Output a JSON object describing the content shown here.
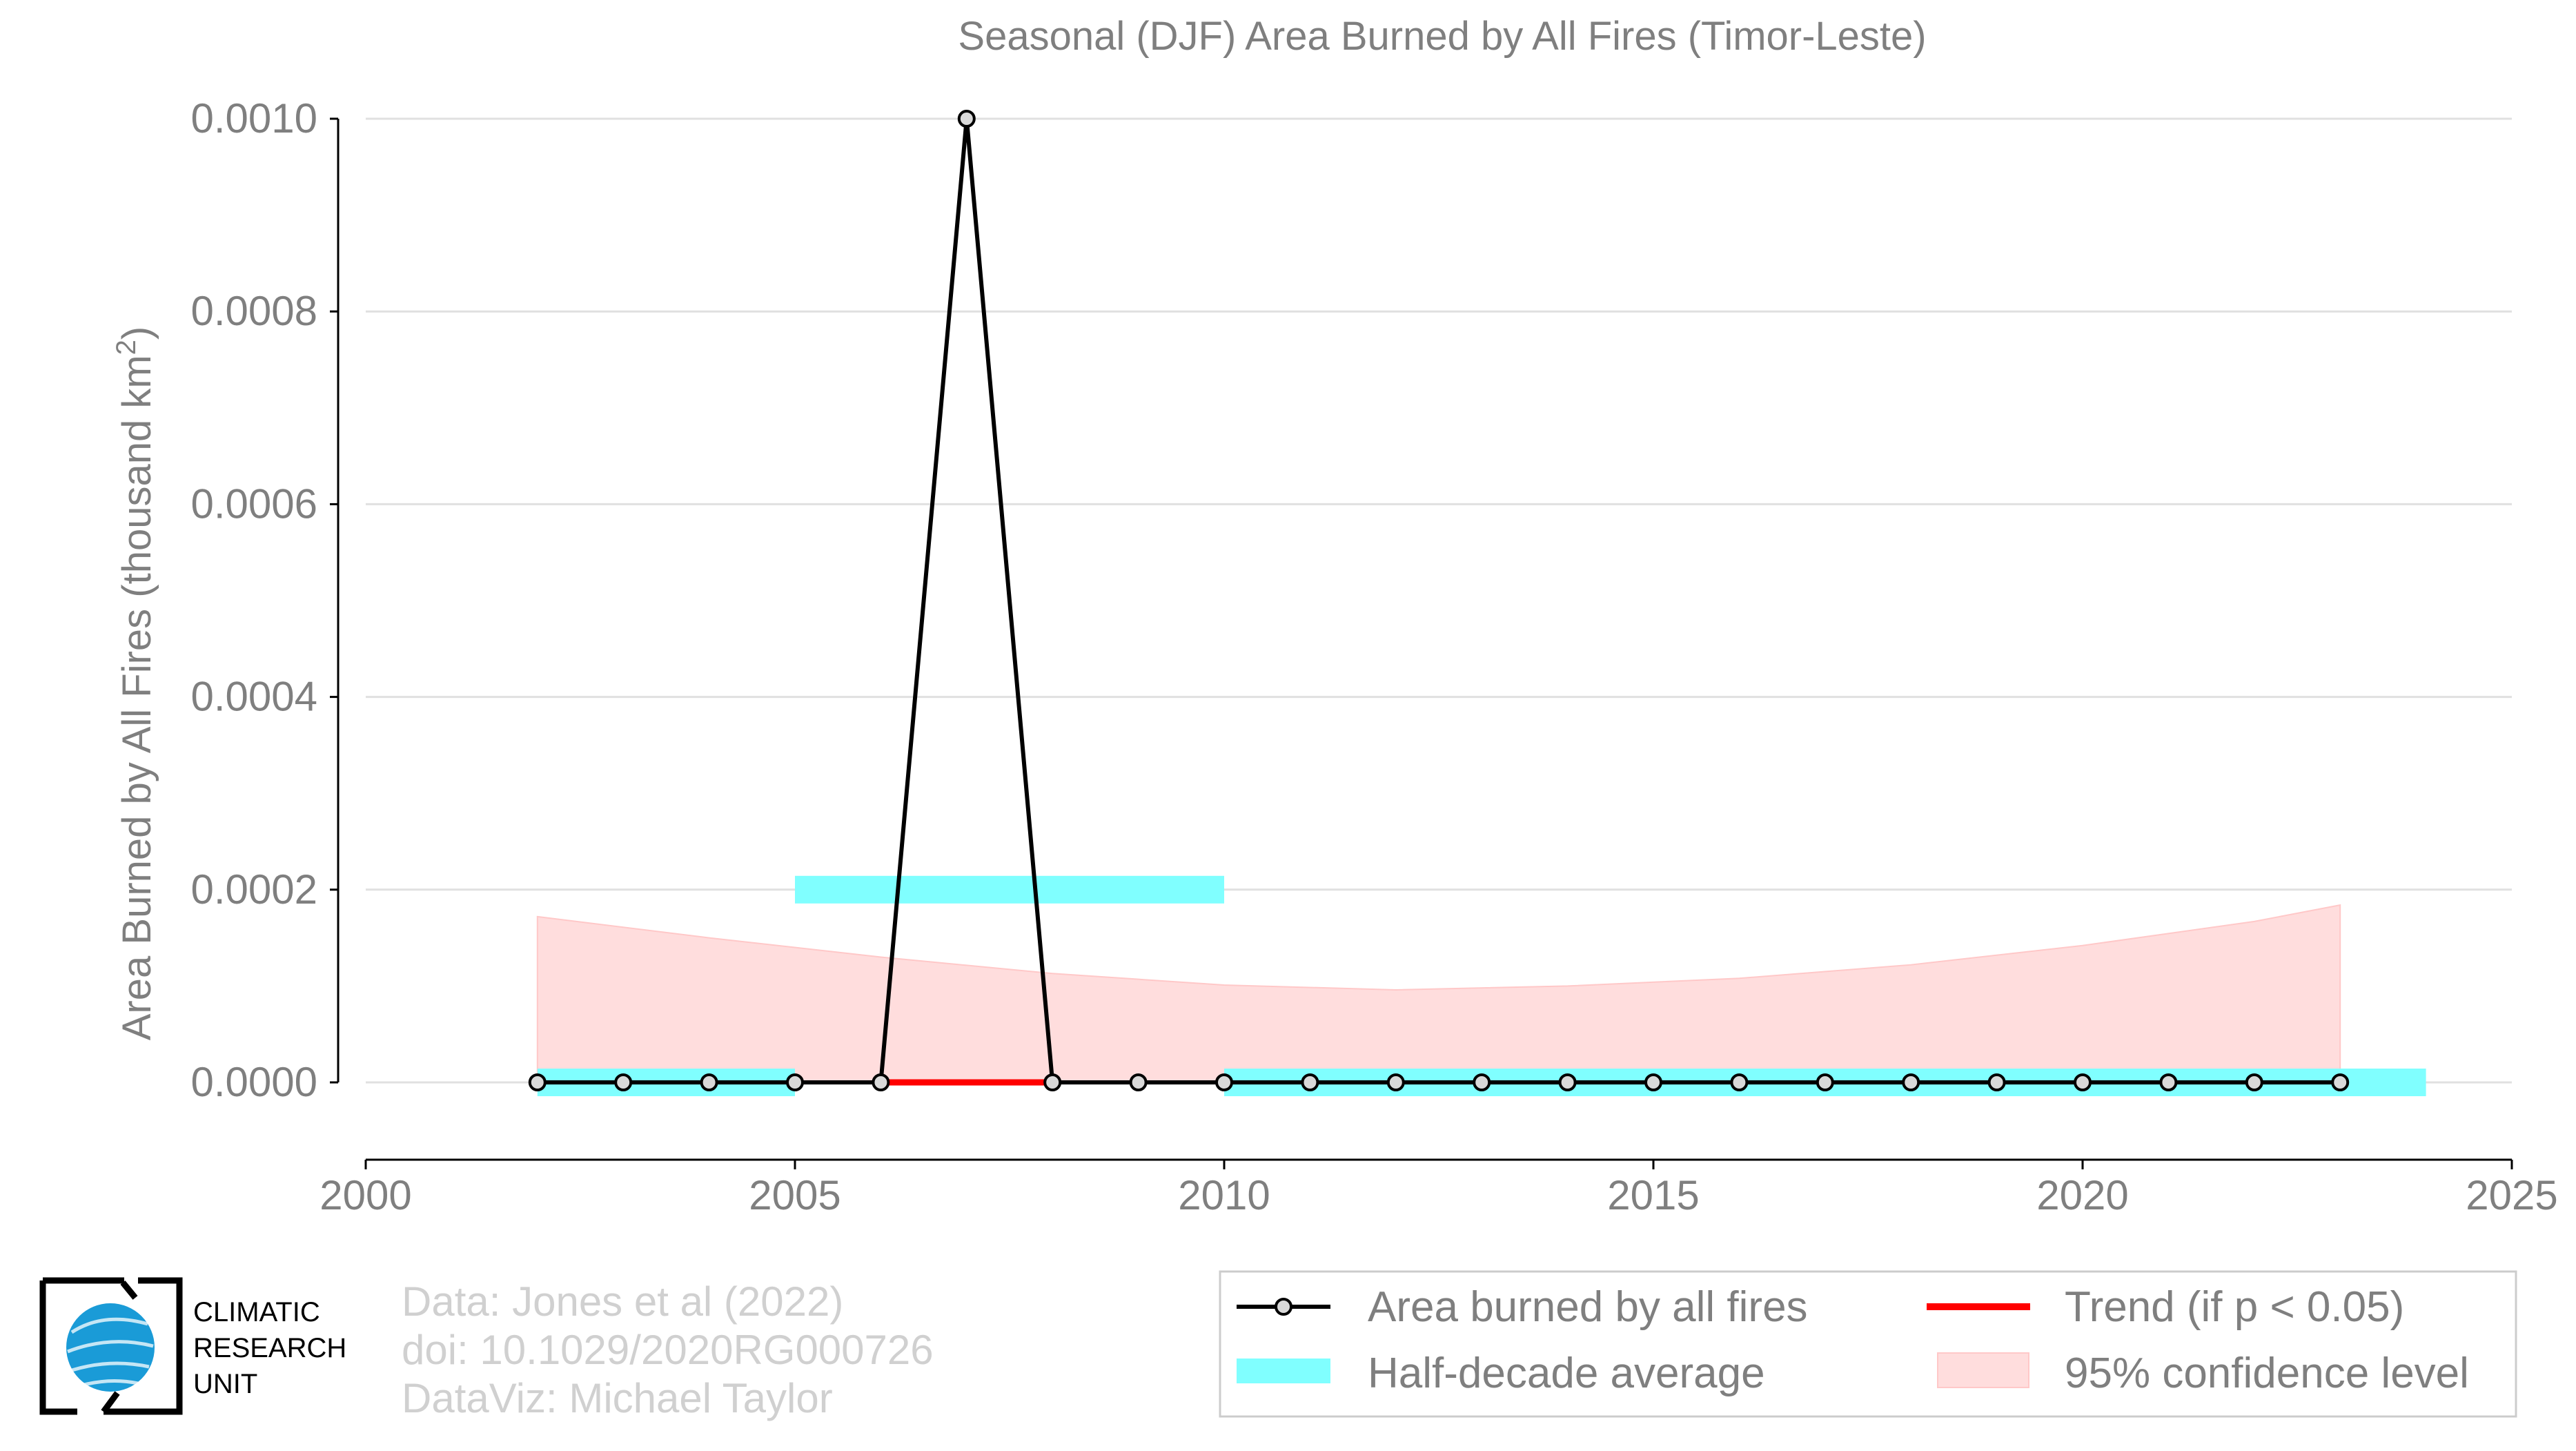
{
  "chart_data": {
    "type": "line",
    "title": "Seasonal (DJF) Area Burned by All Fires (Timor-Leste)",
    "ylabel": "Area Burned by All Fires (thousand km",
    "ylabel_sup": "2",
    "ylabel_end": ")",
    "xlabel": "",
    "xlim": [
      2000,
      2025
    ],
    "ylim": [
      -8e-05,
      0.00107
    ],
    "x_ticks": [
      2000,
      2005,
      2010,
      2015,
      2020,
      2025
    ],
    "x_tick_labels": [
      "2000",
      "2005",
      "2010",
      "2015",
      "2020",
      "2025"
    ],
    "y_ticks": [
      0.0,
      0.0002,
      0.0004,
      0.0006,
      0.0008,
      0.001
    ],
    "y_tick_labels": [
      "0.0000",
      "0.0002",
      "0.0004",
      "0.0006",
      "0.0008",
      "0.0010"
    ],
    "grid": "horizontal",
    "series": [
      {
        "name": "Area burned by all fires",
        "color": "#000000",
        "x": [
          2002,
          2003,
          2004,
          2005,
          2006,
          2007,
          2008,
          2009,
          2010,
          2011,
          2012,
          2013,
          2014,
          2015,
          2016,
          2017,
          2018,
          2019,
          2020,
          2021,
          2022,
          2023
        ],
        "y": [
          0,
          0,
          0,
          0,
          0,
          0.001,
          0,
          0,
          0,
          0,
          0,
          0,
          0,
          0,
          0,
          0,
          0,
          0,
          0,
          0,
          0,
          0
        ]
      }
    ],
    "half_decade_average": {
      "name": "Half-decade average",
      "color": "#80ffff",
      "segments": [
        {
          "x0": 2002,
          "x1": 2005,
          "y": 0
        },
        {
          "x0": 2005,
          "x1": 2010,
          "y": 0.0002
        },
        {
          "x0": 2010,
          "x1": 2024,
          "y": 0
        }
      ]
    },
    "trend": {
      "name": "Trend (if p < 0.05)",
      "color": "#ff0000",
      "x0": 2006,
      "x1": 2008,
      "y": 0
    },
    "confidence_band": {
      "name": "95% confidence level",
      "color": "#ffdddd",
      "x": [
        2002,
        2004,
        2006,
        2008,
        2010,
        2012,
        2014,
        2016,
        2018,
        2020,
        2022,
        2023
      ],
      "upper": [
        0.000172,
        0.00015,
        0.00013,
        0.000113,
        0.000101,
        9.6e-05,
        0.0001,
        0.000108,
        0.000122,
        0.000142,
        0.000167,
        0.000184
      ],
      "lower": [
        0,
        0,
        0,
        0,
        0,
        0,
        0,
        0,
        0,
        0,
        0,
        0
      ]
    },
    "legend_position": "bottom-right",
    "legend": [
      {
        "label": "Area burned by all fires",
        "kind": "line-marker"
      },
      {
        "label": "Trend (if p < 0.05)",
        "kind": "line-red"
      },
      {
        "label": "Half-decade average",
        "kind": "bar-cyan"
      },
      {
        "label": "95% confidence level",
        "kind": "patch-pink"
      }
    ]
  },
  "credits": {
    "line1": "Data: Jones et al (2022)",
    "line2": "doi: 10.1029/2020RG000726",
    "line3": "DataViz: Michael Taylor"
  },
  "logo": {
    "line1": "CLIMATIC",
    "line2": "RESEARCH",
    "line3": "UNIT"
  }
}
